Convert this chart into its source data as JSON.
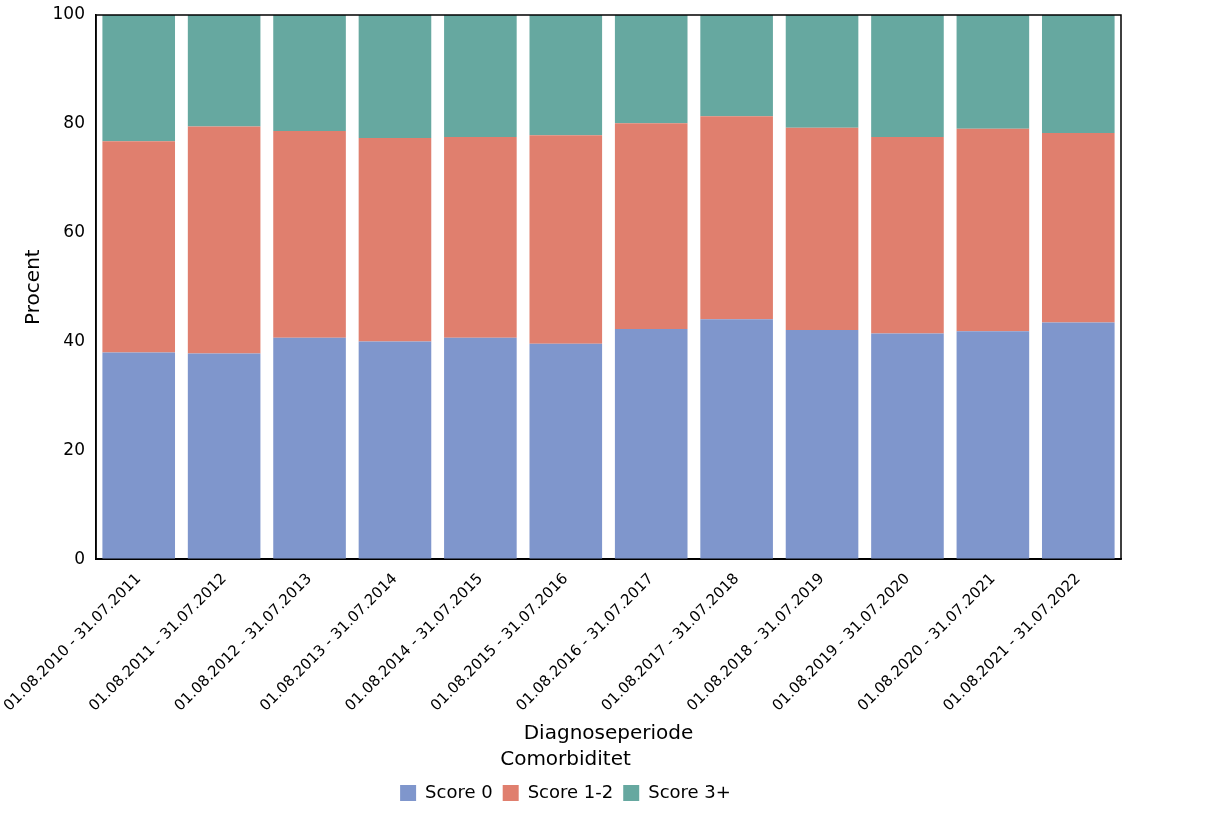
{
  "chart_data": {
    "type": "bar",
    "stacked": true,
    "xlabel": "Diagnoseperiode",
    "ylabel": "Procent",
    "legend_title": "Comorbiditet",
    "legend": "bottom",
    "grid": false,
    "categories": [
      "01.08.2010 - 31.07.2011",
      "01.08.2011 - 31.07.2012",
      "01.08.2012 - 31.07.2013",
      "01.08.2013 - 31.07.2014",
      "01.08.2014 - 31.07.2015",
      "01.08.2015 - 31.07.2016",
      "01.08.2016 - 31.07.2017",
      "01.08.2017 - 31.07.2018",
      "01.08.2018 - 31.07.2019",
      "01.08.2019 - 31.07.2020",
      "01.08.2020 - 31.07.2021",
      "01.08.2021 - 31.07.2022"
    ],
    "series": [
      {
        "name": "Score 0",
        "color": "#7f96cc",
        "values": [
          38.0,
          37.8,
          40.7,
          40.0,
          40.7,
          39.6,
          42.3,
          44.1,
          42.1,
          41.5,
          41.9,
          43.5
        ]
      },
      {
        "name": "Score 1-2",
        "color": "#e07f6e",
        "values": [
          38.8,
          41.7,
          38.0,
          37.4,
          36.9,
          38.3,
          37.8,
          37.3,
          37.2,
          36.1,
          37.2,
          34.8
        ]
      },
      {
        "name": "Score 3+",
        "color": "#66a8a0",
        "values": [
          23.2,
          20.5,
          21.3,
          22.6,
          22.4,
          22.1,
          19.9,
          18.6,
          20.7,
          22.4,
          20.9,
          21.7
        ]
      }
    ],
    "ylim": [
      0,
      100
    ],
    "yticks": [
      0,
      20,
      40,
      60,
      80,
      100
    ]
  }
}
